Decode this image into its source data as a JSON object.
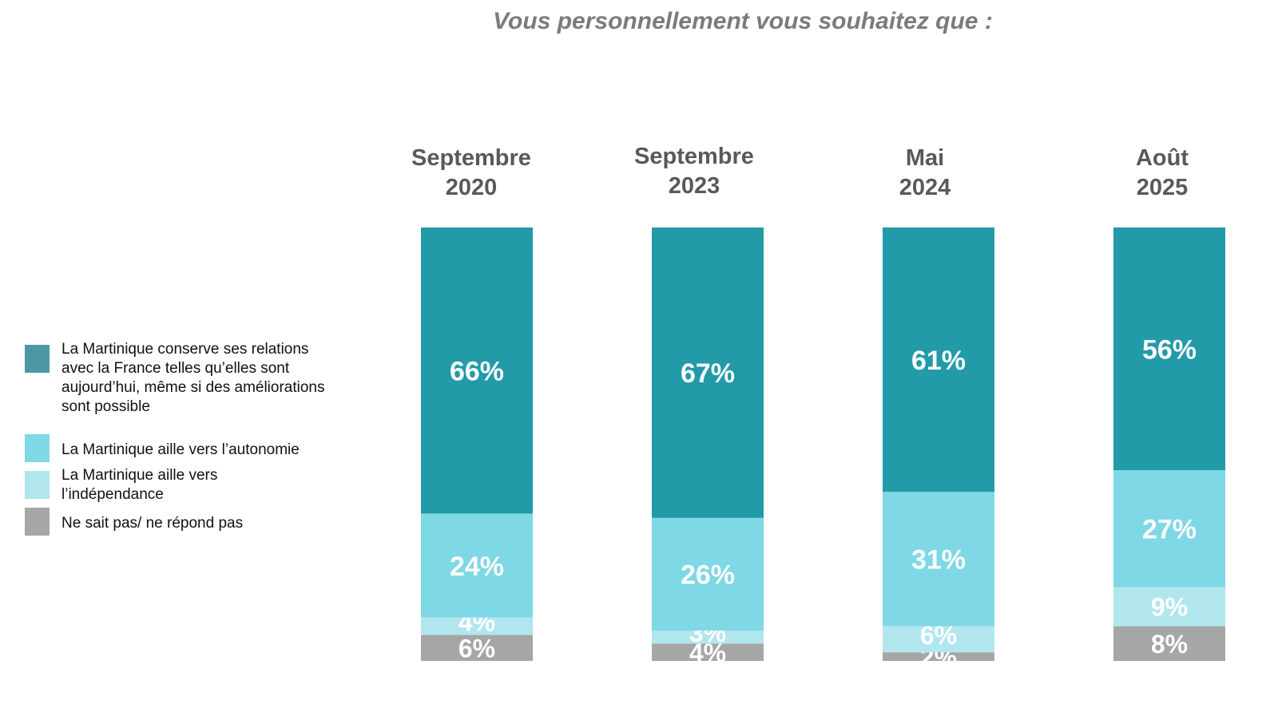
{
  "title": "Vous personnellement vous souhaitez que :",
  "colors": {
    "conserve": "#229aa8",
    "autonomie": "#7fd8e5",
    "independance": "#b2e6ee",
    "nsp": "#a6a6a6",
    "legend_conserve": "#4d97a7",
    "title": "#7b7b7b",
    "header": "#595959"
  },
  "legend": [
    {
      "key": "conserve",
      "label": "La Martinique conserve ses relations avec la France telles qu’elles sont aujourd’hui, même si des améliorations sont possible"
    },
    {
      "key": "autonomie",
      "label": "La Martinique aille vers l’autonomie"
    },
    {
      "key": "independance",
      "label": "La Martinique aille vers l’indépendance"
    },
    {
      "key": "nsp",
      "label": "Ne sait pas/ ne répond pas"
    }
  ],
  "columns": [
    {
      "line1": "Septembre",
      "line2": "2020"
    },
    {
      "line1": "Septembre",
      "line2": "2023"
    },
    {
      "line1": "Mai",
      "line2": "2024"
    },
    {
      "line1": "Août",
      "line2": "2025"
    }
  ],
  "chart_data": {
    "type": "bar",
    "stacked": true,
    "percent": true,
    "categories": [
      "Septembre 2020",
      "Septembre 2023",
      "Mai 2024",
      "Août 2025"
    ],
    "series": [
      {
        "name": "La Martinique conserve ses relations avec la France telles qu’elles sont aujourd’hui, même si des améliorations sont possible",
        "key": "conserve",
        "values": [
          66,
          67,
          61,
          56
        ]
      },
      {
        "name": "La Martinique aille vers l’autonomie",
        "key": "autonomie",
        "values": [
          24,
          26,
          31,
          27
        ]
      },
      {
        "name": "La Martinique aille vers l’indépendance",
        "key": "independance",
        "values": [
          4,
          3,
          6,
          9
        ]
      },
      {
        "name": "Ne sait pas/ ne répond pas",
        "key": "nsp",
        "values": [
          6,
          4,
          2,
          8
        ]
      }
    ],
    "ylim": [
      0,
      100
    ],
    "data_labels": [
      [
        "66%",
        "24%",
        "4%",
        "6%"
      ],
      [
        "67%",
        "26%",
        "3%",
        "4%"
      ],
      [
        "61%",
        "31%",
        "6%",
        "2%"
      ],
      [
        "56%",
        "27%",
        "9%",
        "8%"
      ]
    ],
    "legend_position": "left",
    "grid": false
  }
}
